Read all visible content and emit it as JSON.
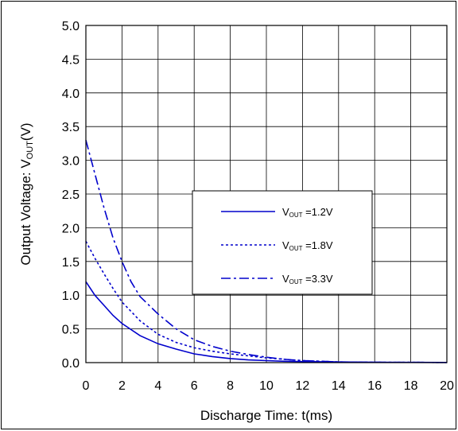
{
  "chart_data": {
    "type": "line",
    "xlabel": "Discharge Time: t(ms)",
    "ylabel": {
      "main": "Output Voltage: V",
      "sub": "OUT",
      "tail": "(V)"
    },
    "xlim": [
      0,
      20
    ],
    "ylim": [
      0,
      5.0
    ],
    "x_ticks": [
      "0",
      "2",
      "4",
      "6",
      "8",
      "10",
      "12",
      "14",
      "16",
      "18",
      "20"
    ],
    "y_ticks": [
      "0.0",
      "0.5",
      "1.0",
      "1.5",
      "2.0",
      "2.5",
      "3.0",
      "3.5",
      "4.0",
      "4.5",
      "5.0"
    ],
    "grid": true,
    "legend_position": "center-right",
    "series": [
      {
        "name": "V",
        "name_sub": "OUT",
        "name_tail": " =1.2V",
        "style": "solid",
        "color": "#0000cc",
        "x": [
          0,
          0.5,
          1,
          1.5,
          2,
          3,
          4,
          5,
          6,
          7,
          8,
          9,
          10,
          11,
          12,
          14,
          16,
          18,
          20
        ],
        "y": [
          1.2,
          1.0,
          0.85,
          0.7,
          0.58,
          0.4,
          0.28,
          0.2,
          0.13,
          0.09,
          0.06,
          0.04,
          0.03,
          0.02,
          0.015,
          0.01,
          0.005,
          0.003,
          0.002
        ]
      },
      {
        "name": "V",
        "name_sub": "OUT",
        "name_tail": " =1.8V",
        "style": "dotted",
        "color": "#0000cc",
        "x": [
          0,
          0.5,
          1,
          1.5,
          2,
          3,
          4,
          5,
          6,
          7,
          8,
          9,
          10,
          11,
          12,
          13,
          14,
          16,
          18,
          20
        ],
        "y": [
          1.8,
          1.55,
          1.32,
          1.1,
          0.9,
          0.62,
          0.42,
          0.3,
          0.22,
          0.17,
          0.13,
          0.1,
          0.07,
          0.05,
          0.03,
          0.02,
          0.01,
          0.005,
          0.003,
          0.002
        ]
      },
      {
        "name": "V",
        "name_sub": "OUT",
        "name_tail": " =3.3V",
        "style": "dashdot",
        "color": "#0000cc",
        "x": [
          0,
          0.3,
          0.6,
          1,
          1.5,
          2,
          2.5,
          3,
          4,
          5,
          6,
          7,
          8,
          9,
          10,
          11,
          12,
          13,
          14,
          16,
          18,
          20
        ],
        "y": [
          3.3,
          3.0,
          2.7,
          2.3,
          1.85,
          1.5,
          1.2,
          0.98,
          0.72,
          0.5,
          0.34,
          0.24,
          0.17,
          0.12,
          0.08,
          0.05,
          0.03,
          0.02,
          0.01,
          0.005,
          0.003,
          0.002
        ]
      }
    ]
  }
}
